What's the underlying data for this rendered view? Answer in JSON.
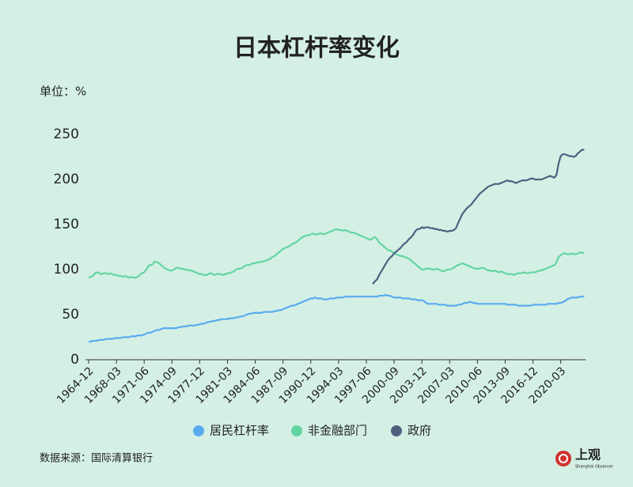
{
  "chart_data": {
    "type": "line",
    "title": "日本杠杆率变化",
    "unit_label": "单位：%",
    "source": "数据来源：国际清算银行",
    "categories": [
      "1964-12",
      null,
      null,
      null,
      null,
      null,
      null,
      null,
      null,
      null,
      null,
      null,
      null,
      "1968-03",
      null,
      null,
      null,
      null,
      null,
      null,
      null,
      null,
      null,
      null,
      null,
      null,
      "1971-06",
      null,
      null,
      null,
      null,
      null,
      null,
      null,
      null,
      null,
      null,
      null,
      null,
      "1974-09",
      null,
      null,
      null,
      null,
      null,
      null,
      null,
      null,
      null,
      null,
      null,
      null,
      "1977-12",
      null,
      null,
      null,
      null,
      null,
      null,
      null,
      null,
      null,
      null,
      null,
      null,
      "1981-03",
      null,
      null,
      null,
      null,
      null,
      null,
      null,
      null,
      null,
      null,
      null,
      null,
      "1984-06",
      null,
      null,
      null,
      null,
      null,
      null,
      null,
      null,
      null,
      null,
      null,
      null,
      "1987-09",
      null,
      null,
      null,
      null,
      null,
      null,
      null,
      null,
      null,
      null,
      null,
      null,
      "1990-12",
      null,
      null,
      null,
      null,
      null,
      null,
      null,
      null,
      null,
      null,
      null,
      null,
      "1994-03",
      null,
      null,
      null,
      null,
      null,
      null,
      null,
      null,
      null,
      null,
      null,
      null,
      "1997-06",
      null,
      null,
      null,
      null,
      null,
      null,
      null,
      null,
      null,
      null,
      null,
      null,
      "2000-09",
      null,
      null,
      null,
      null,
      null,
      null,
      null,
      null,
      null,
      null,
      null,
      null,
      "2003-12",
      null,
      null,
      null,
      null,
      null,
      null,
      null,
      null,
      null,
      null,
      null,
      null,
      "2007-03",
      null,
      null,
      null,
      null,
      null,
      null,
      null,
      null,
      null,
      null,
      null,
      null,
      "2010-06",
      null,
      null,
      null,
      null,
      null,
      null,
      null,
      null,
      null,
      null,
      null,
      null,
      "2013-09",
      null,
      null,
      null,
      null,
      null,
      null,
      null,
      null,
      null,
      null,
      null,
      null,
      "2016-12",
      null,
      null,
      null,
      null,
      null,
      null,
      null,
      null,
      null,
      null,
      null,
      null,
      "2020-03",
      null,
      null,
      null,
      null,
      null,
      null,
      null,
      null,
      null,
      null,
      null
    ],
    "series": [
      {
        "name": "居民杠杆率",
        "color": "#5aabee",
        "values": [
          20,
          20,
          21,
          21,
          21,
          22,
          22,
          22,
          23,
          23,
          23,
          23,
          24,
          24,
          24,
          24,
          25,
          25,
          25,
          25,
          26,
          26,
          26,
          27,
          27,
          27,
          28,
          29,
          30,
          30,
          31,
          32,
          33,
          33,
          34,
          35,
          35,
          35,
          35,
          35,
          35,
          35,
          36,
          36,
          37,
          37,
          37,
          38,
          38,
          38,
          38,
          39,
          39,
          40,
          40,
          41,
          42,
          42,
          43,
          43,
          44,
          44,
          45,
          45,
          45,
          45,
          46,
          46,
          46,
          47,
          47,
          48,
          48,
          49,
          50,
          51,
          51,
          52,
          52,
          52,
          52,
          52,
          53,
          53,
          53,
          53,
          53,
          54,
          54,
          55,
          55,
          56,
          57,
          58,
          59,
          60,
          60,
          61,
          62,
          63,
          64,
          65,
          66,
          67,
          68,
          68,
          69,
          68,
          68,
          68,
          67,
          67,
          67,
          68,
          68,
          68,
          69,
          69,
          69,
          69,
          70,
          70,
          70,
          70,
          70,
          70,
          70,
          70,
          70,
          70,
          70,
          70,
          70,
          70,
          70,
          70,
          71,
          71,
          71,
          72,
          71,
          71,
          70,
          69,
          69,
          69,
          69,
          68,
          68,
          68,
          68,
          67,
          67,
          67,
          66,
          66,
          66,
          65,
          63,
          62,
          62,
          62,
          62,
          62,
          61,
          61,
          61,
          61,
          60,
          60,
          60,
          60,
          60,
          61,
          61,
          62,
          63,
          63,
          64,
          64,
          63,
          63,
          62,
          62,
          62,
          62,
          62,
          62,
          62,
          62,
          62,
          62,
          62,
          62,
          62,
          62,
          61,
          61,
          61,
          61,
          61,
          60,
          60,
          60,
          60,
          60,
          60,
          60,
          61,
          61,
          61,
          61,
          61,
          61,
          61,
          62,
          62,
          62,
          62,
          62,
          63,
          63,
          64,
          65,
          67,
          68,
          69,
          69,
          69,
          69,
          70,
          70,
          70
        ]
      },
      {
        "name": "非金融部门",
        "color": "#63d5a2",
        "values": [
          91,
          92,
          93,
          96,
          97,
          96,
          95,
          96,
          96,
          95,
          96,
          95,
          94,
          94,
          93,
          93,
          92,
          93,
          92,
          91,
          92,
          91,
          91,
          92,
          94,
          96,
          97,
          100,
          104,
          105,
          106,
          109,
          108,
          107,
          105,
          103,
          101,
          100,
          99,
          99,
          100,
          102,
          102,
          101,
          101,
          100,
          100,
          99,
          99,
          98,
          97,
          96,
          95,
          95,
          94,
          94,
          95,
          96,
          95,
          94,
          95,
          95,
          95,
          94,
          95,
          96,
          96,
          97,
          98,
          100,
          101,
          101,
          102,
          104,
          105,
          105,
          106,
          107,
          107,
          108,
          108,
          109,
          109,
          110,
          111,
          112,
          114,
          115,
          117,
          119,
          121,
          123,
          124,
          125,
          126,
          128,
          129,
          130,
          132,
          134,
          136,
          137,
          138,
          138,
          139,
          140,
          139,
          139,
          140,
          140,
          139,
          140,
          141,
          142,
          143,
          144,
          145,
          144,
          144,
          143,
          144,
          143,
          142,
          141,
          141,
          140,
          139,
          138,
          137,
          136,
          135,
          134,
          133,
          135,
          136,
          134,
          130,
          128,
          126,
          124,
          122,
          121,
          120,
          118,
          117,
          116,
          115,
          115,
          114,
          113,
          112,
          110,
          108,
          106,
          104,
          102,
          100,
          100,
          101,
          101,
          101,
          100,
          100,
          101,
          100,
          99,
          98,
          99,
          100,
          100,
          101,
          102,
          104,
          105,
          106,
          107,
          106,
          105,
          104,
          103,
          102,
          101,
          101,
          101,
          102,
          102,
          100,
          99,
          99,
          98,
          99,
          98,
          97,
          98,
          97,
          96,
          95,
          95,
          95,
          94,
          95,
          96,
          96,
          96,
          97,
          96,
          96,
          97,
          97,
          97,
          98,
          99,
          99,
          100,
          101,
          102,
          103,
          104,
          105,
          108,
          114,
          116,
          118,
          118,
          117,
          117,
          118,
          117,
          117,
          118,
          119,
          119,
          118
        ]
      },
      {
        "name": "政府",
        "color": "#4f607e",
        "values": [
          null,
          null,
          null,
          null,
          null,
          null,
          null,
          null,
          null,
          null,
          null,
          null,
          null,
          null,
          null,
          null,
          null,
          null,
          null,
          null,
          null,
          null,
          null,
          null,
          null,
          null,
          null,
          null,
          null,
          null,
          null,
          null,
          null,
          null,
          null,
          null,
          null,
          null,
          null,
          null,
          null,
          null,
          null,
          null,
          null,
          null,
          null,
          null,
          null,
          null,
          null,
          null,
          null,
          null,
          null,
          null,
          null,
          null,
          null,
          null,
          null,
          null,
          null,
          null,
          null,
          null,
          null,
          null,
          null,
          null,
          null,
          null,
          null,
          null,
          null,
          null,
          null,
          null,
          null,
          null,
          null,
          null,
          null,
          null,
          null,
          null,
          null,
          null,
          null,
          null,
          null,
          null,
          null,
          null,
          null,
          null,
          null,
          null,
          null,
          null,
          null,
          null,
          null,
          null,
          null,
          null,
          null,
          null,
          null,
          null,
          null,
          null,
          null,
          null,
          null,
          null,
          null,
          null,
          null,
          null,
          null,
          null,
          null,
          null,
          null,
          null,
          null,
          null,
          null,
          null,
          null,
          null,
          null,
          84,
          87,
          89,
          94,
          98,
          102,
          106,
          110,
          113,
          115,
          118,
          120,
          122,
          124,
          127,
          129,
          131,
          134,
          136,
          139,
          143,
          145,
          145,
          147,
          146,
          147,
          147,
          146,
          146,
          145,
          145,
          144,
          144,
          143,
          143,
          142,
          143,
          143,
          144,
          146,
          152,
          157,
          162,
          165,
          168,
          170,
          172,
          175,
          178,
          181,
          184,
          186,
          188,
          190,
          192,
          193,
          194,
          195,
          195,
          195,
          196,
          197,
          198,
          199,
          198,
          198,
          197,
          196,
          197,
          198,
          199,
          199,
          199,
          200,
          201,
          201,
          200,
          200,
          200,
          200,
          201,
          202,
          203,
          204,
          203,
          202,
          205,
          218,
          226,
          228,
          228,
          227,
          226,
          226,
          225,
          226,
          229,
          231,
          233,
          233
        ]
      }
    ],
    "ylim": [
      0,
      250
    ],
    "yticks": [
      0,
      50,
      100,
      150,
      200,
      250
    ],
    "grid": false,
    "legend": "bottom"
  },
  "brand": {
    "name": "上观",
    "subtitle": "Shanghai Observer"
  }
}
